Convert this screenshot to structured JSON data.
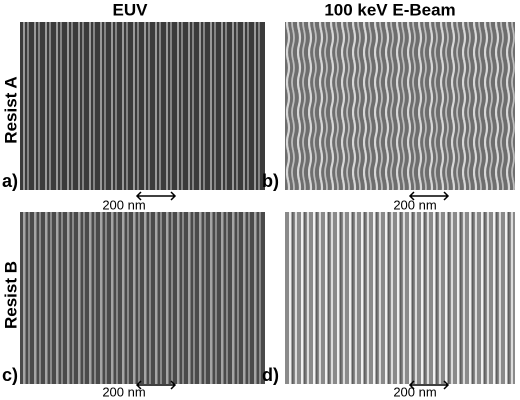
{
  "columns": [
    "EUV",
    "100 keV E-Beam"
  ],
  "rows": [
    "Resist A",
    "Resist B"
  ],
  "panels": [
    {
      "label": "a)",
      "scale": "200 nm"
    },
    {
      "label": "b)",
      "scale": "200 nm"
    },
    {
      "label": "c)",
      "scale": "200 nm"
    },
    {
      "label": "d)",
      "scale": "200 nm"
    }
  ]
}
